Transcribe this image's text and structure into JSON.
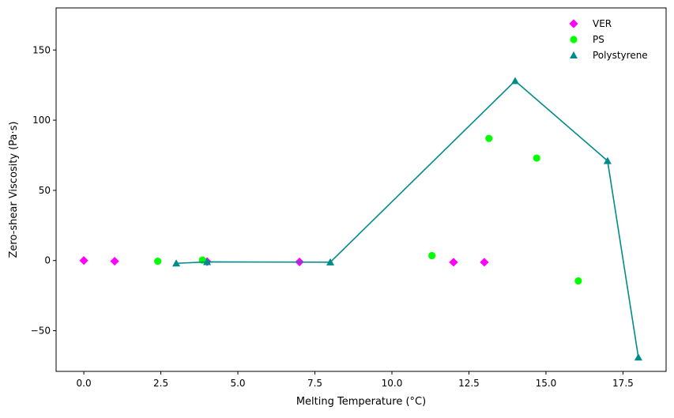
{
  "chart_data": {
    "type": "scatter",
    "title": "",
    "xlabel": "Melting Temperature (°C)",
    "ylabel": "Zero-shear Viscosity (Pa·s)",
    "xlim": [
      -0.9,
      18.9
    ],
    "ylim": [
      -79,
      180
    ],
    "xticks": [
      0.0,
      2.5,
      5.0,
      7.5,
      10.0,
      12.5,
      15.0,
      17.5
    ],
    "xtick_labels": [
      "0.0",
      "2.5",
      "5.0",
      "7.5",
      "10.0",
      "12.5",
      "15.0",
      "17.5"
    ],
    "yticks": [
      -50,
      0,
      50,
      100,
      150
    ],
    "ytick_labels": [
      "−50",
      "0",
      "50",
      "100",
      "150"
    ],
    "grid": false,
    "legend_position": "top-right",
    "series": [
      {
        "name": "VER",
        "marker": "diamond",
        "color": "#ff00ff",
        "line": false,
        "points": [
          [
            0,
            0
          ],
          [
            1,
            -0.5
          ],
          [
            4,
            -0.8
          ],
          [
            7,
            -1.0
          ],
          [
            12,
            -1.2
          ],
          [
            13,
            -1.2
          ]
        ]
      },
      {
        "name": "PS",
        "marker": "circle",
        "color": "#00ff00",
        "line": false,
        "points": [
          [
            2.4,
            -0.5
          ],
          [
            3.85,
            0.3
          ],
          [
            11.3,
            3.5
          ],
          [
            13.15,
            87
          ],
          [
            14.7,
            73
          ],
          [
            16.05,
            -14.5
          ]
        ]
      },
      {
        "name": "Polystyrene",
        "marker": "triangle",
        "color": "#008b8b",
        "line": true,
        "points": [
          [
            3,
            -2
          ],
          [
            4,
            -1
          ],
          [
            8,
            -1.2
          ],
          [
            14,
            128
          ],
          [
            17,
            71
          ],
          [
            18,
            -69
          ]
        ]
      }
    ]
  }
}
